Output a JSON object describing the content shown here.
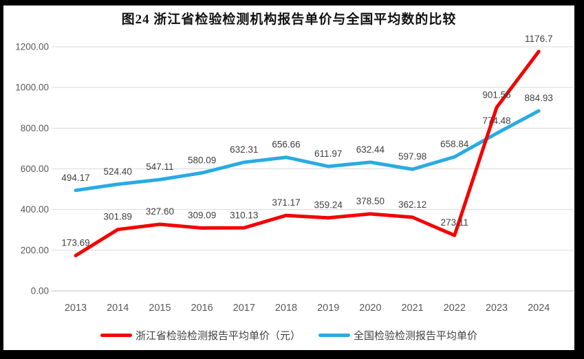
{
  "chart_data": {
    "type": "line",
    "title": "图24  浙江省检验检测机构报告单价与全国平均数的比较",
    "categories": [
      "2013",
      "2014",
      "2015",
      "2016",
      "2017",
      "2018",
      "2019",
      "2020",
      "2021",
      "2022",
      "2023",
      "2024"
    ],
    "series": [
      {
        "name": "浙江省检验检测报告平均单价（元）",
        "color": "#F40000",
        "values": [
          173.69,
          301.89,
          327.6,
          309.09,
          310.13,
          371.17,
          359.24,
          378.5,
          362.12,
          273.11,
          901.56,
          1176.7
        ],
        "labels": [
          "173.69",
          "301.89",
          "327.60",
          "309.09",
          "310.13",
          "371.17",
          "359.24",
          "378.50",
          "362.12",
          "273.11",
          "901.56",
          "1176.7"
        ]
      },
      {
        "name": "全国检验检测报告平均单价",
        "color": "#29ABE2",
        "values": [
          494.17,
          524.4,
          547.11,
          580.09,
          632.31,
          656.66,
          611.97,
          632.44,
          597.98,
          658.84,
          774.48,
          884.93
        ],
        "labels": [
          "494.17",
          "524.40",
          "547.11",
          "580.09",
          "632.31",
          "656.66",
          "611.97",
          "632.44",
          "597.98",
          "658.84",
          "774.48",
          "884.93"
        ]
      }
    ],
    "xlabel": "",
    "ylabel": "",
    "ylim": [
      0,
      1200
    ],
    "ytick_step": 200,
    "ytick_labels": [
      "0.00",
      "200.00",
      "400.00",
      "600.00",
      "800.00",
      "1000.00",
      "1200.00"
    ],
    "grid": true,
    "legend_position": "bottom"
  }
}
